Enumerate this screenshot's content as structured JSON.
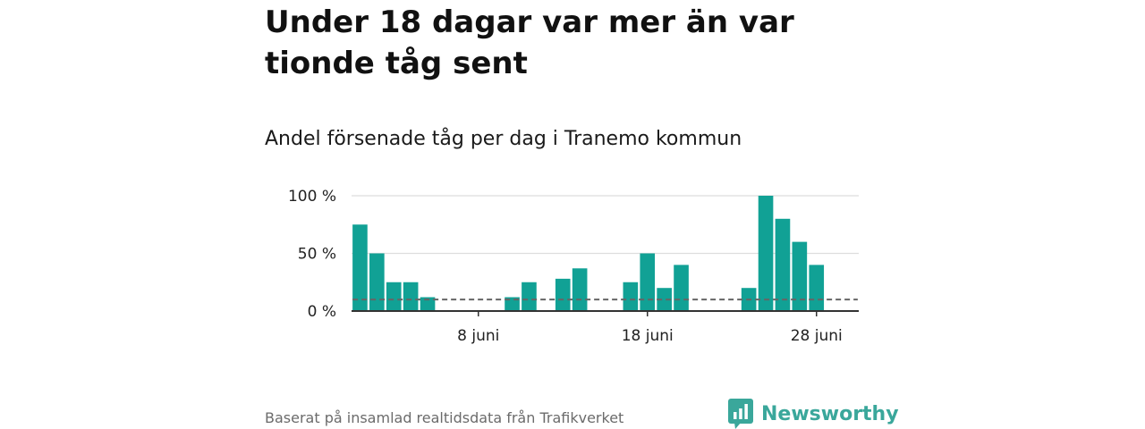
{
  "headline": "Under 18 dagar var mer än var tionde tåg sent",
  "source_note": "Baserat på insamlad realtidsdata från Trafikverket",
  "brand": {
    "name": "Newsworthy",
    "icon": "newsworthy-logo-icon",
    "color": "#3aa79b"
  },
  "colors": {
    "bar": "#11a195",
    "threshold": "#666666",
    "axis": "#333333",
    "grid": "#dddddd"
  },
  "chart_data": {
    "type": "bar",
    "title": "Andel försenade tåg per dag i Tranemo kommun",
    "xlabel": "",
    "ylabel": "",
    "unit": "%",
    "ylim": [
      0,
      100
    ],
    "yticks": [
      {
        "value": 0,
        "label": "0 %"
      },
      {
        "value": 50,
        "label": "50 %"
      },
      {
        "value": 100,
        "label": "100 %"
      }
    ],
    "xticks": [
      {
        "day": 8,
        "label": "8 juni"
      },
      {
        "day": 18,
        "label": "18 juni"
      },
      {
        "day": 28,
        "label": "28 juni"
      }
    ],
    "xlim_days": [
      0.5,
      30.5
    ],
    "days": [
      1,
      2,
      3,
      4,
      5,
      6,
      7,
      8,
      9,
      10,
      11,
      12,
      13,
      14,
      15,
      16,
      17,
      18,
      19,
      20,
      21,
      22,
      23,
      24,
      25,
      26,
      27,
      28,
      29
    ],
    "values": [
      75,
      50,
      25,
      25,
      12,
      0,
      0,
      0,
      0,
      12,
      25,
      0,
      28,
      37,
      0,
      0,
      25,
      50,
      20,
      40,
      0,
      0,
      0,
      20,
      100,
      80,
      60,
      40,
      0
    ],
    "threshold": {
      "value": 10,
      "from_day": 1,
      "to_day": 30
    },
    "grid": true,
    "legend": "none"
  }
}
